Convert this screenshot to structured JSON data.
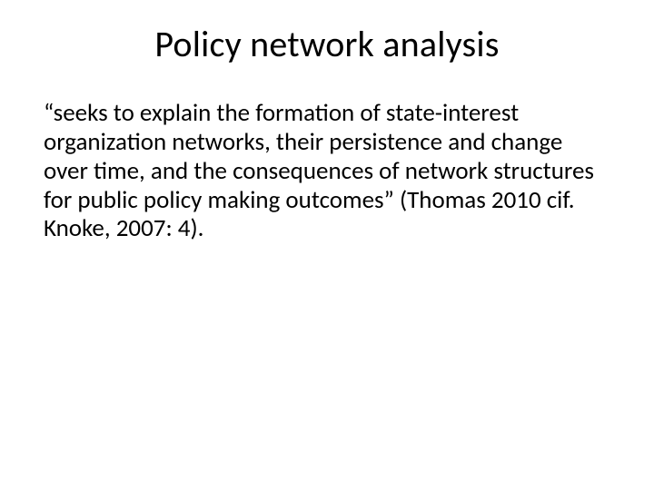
{
  "slide": {
    "title": "Policy network analysis",
    "body": "“seeks to explain the formation of state-interest organization networks, their persistence and change over time, and the consequences of network structures for public policy making outcomes” (Thomas 2010 cif. Knoke, 2007: 4).",
    "background_color": "#ffffff",
    "text_color": "#000000",
    "title_fontsize": 40,
    "body_fontsize": 27,
    "font_family": "Calibri"
  }
}
